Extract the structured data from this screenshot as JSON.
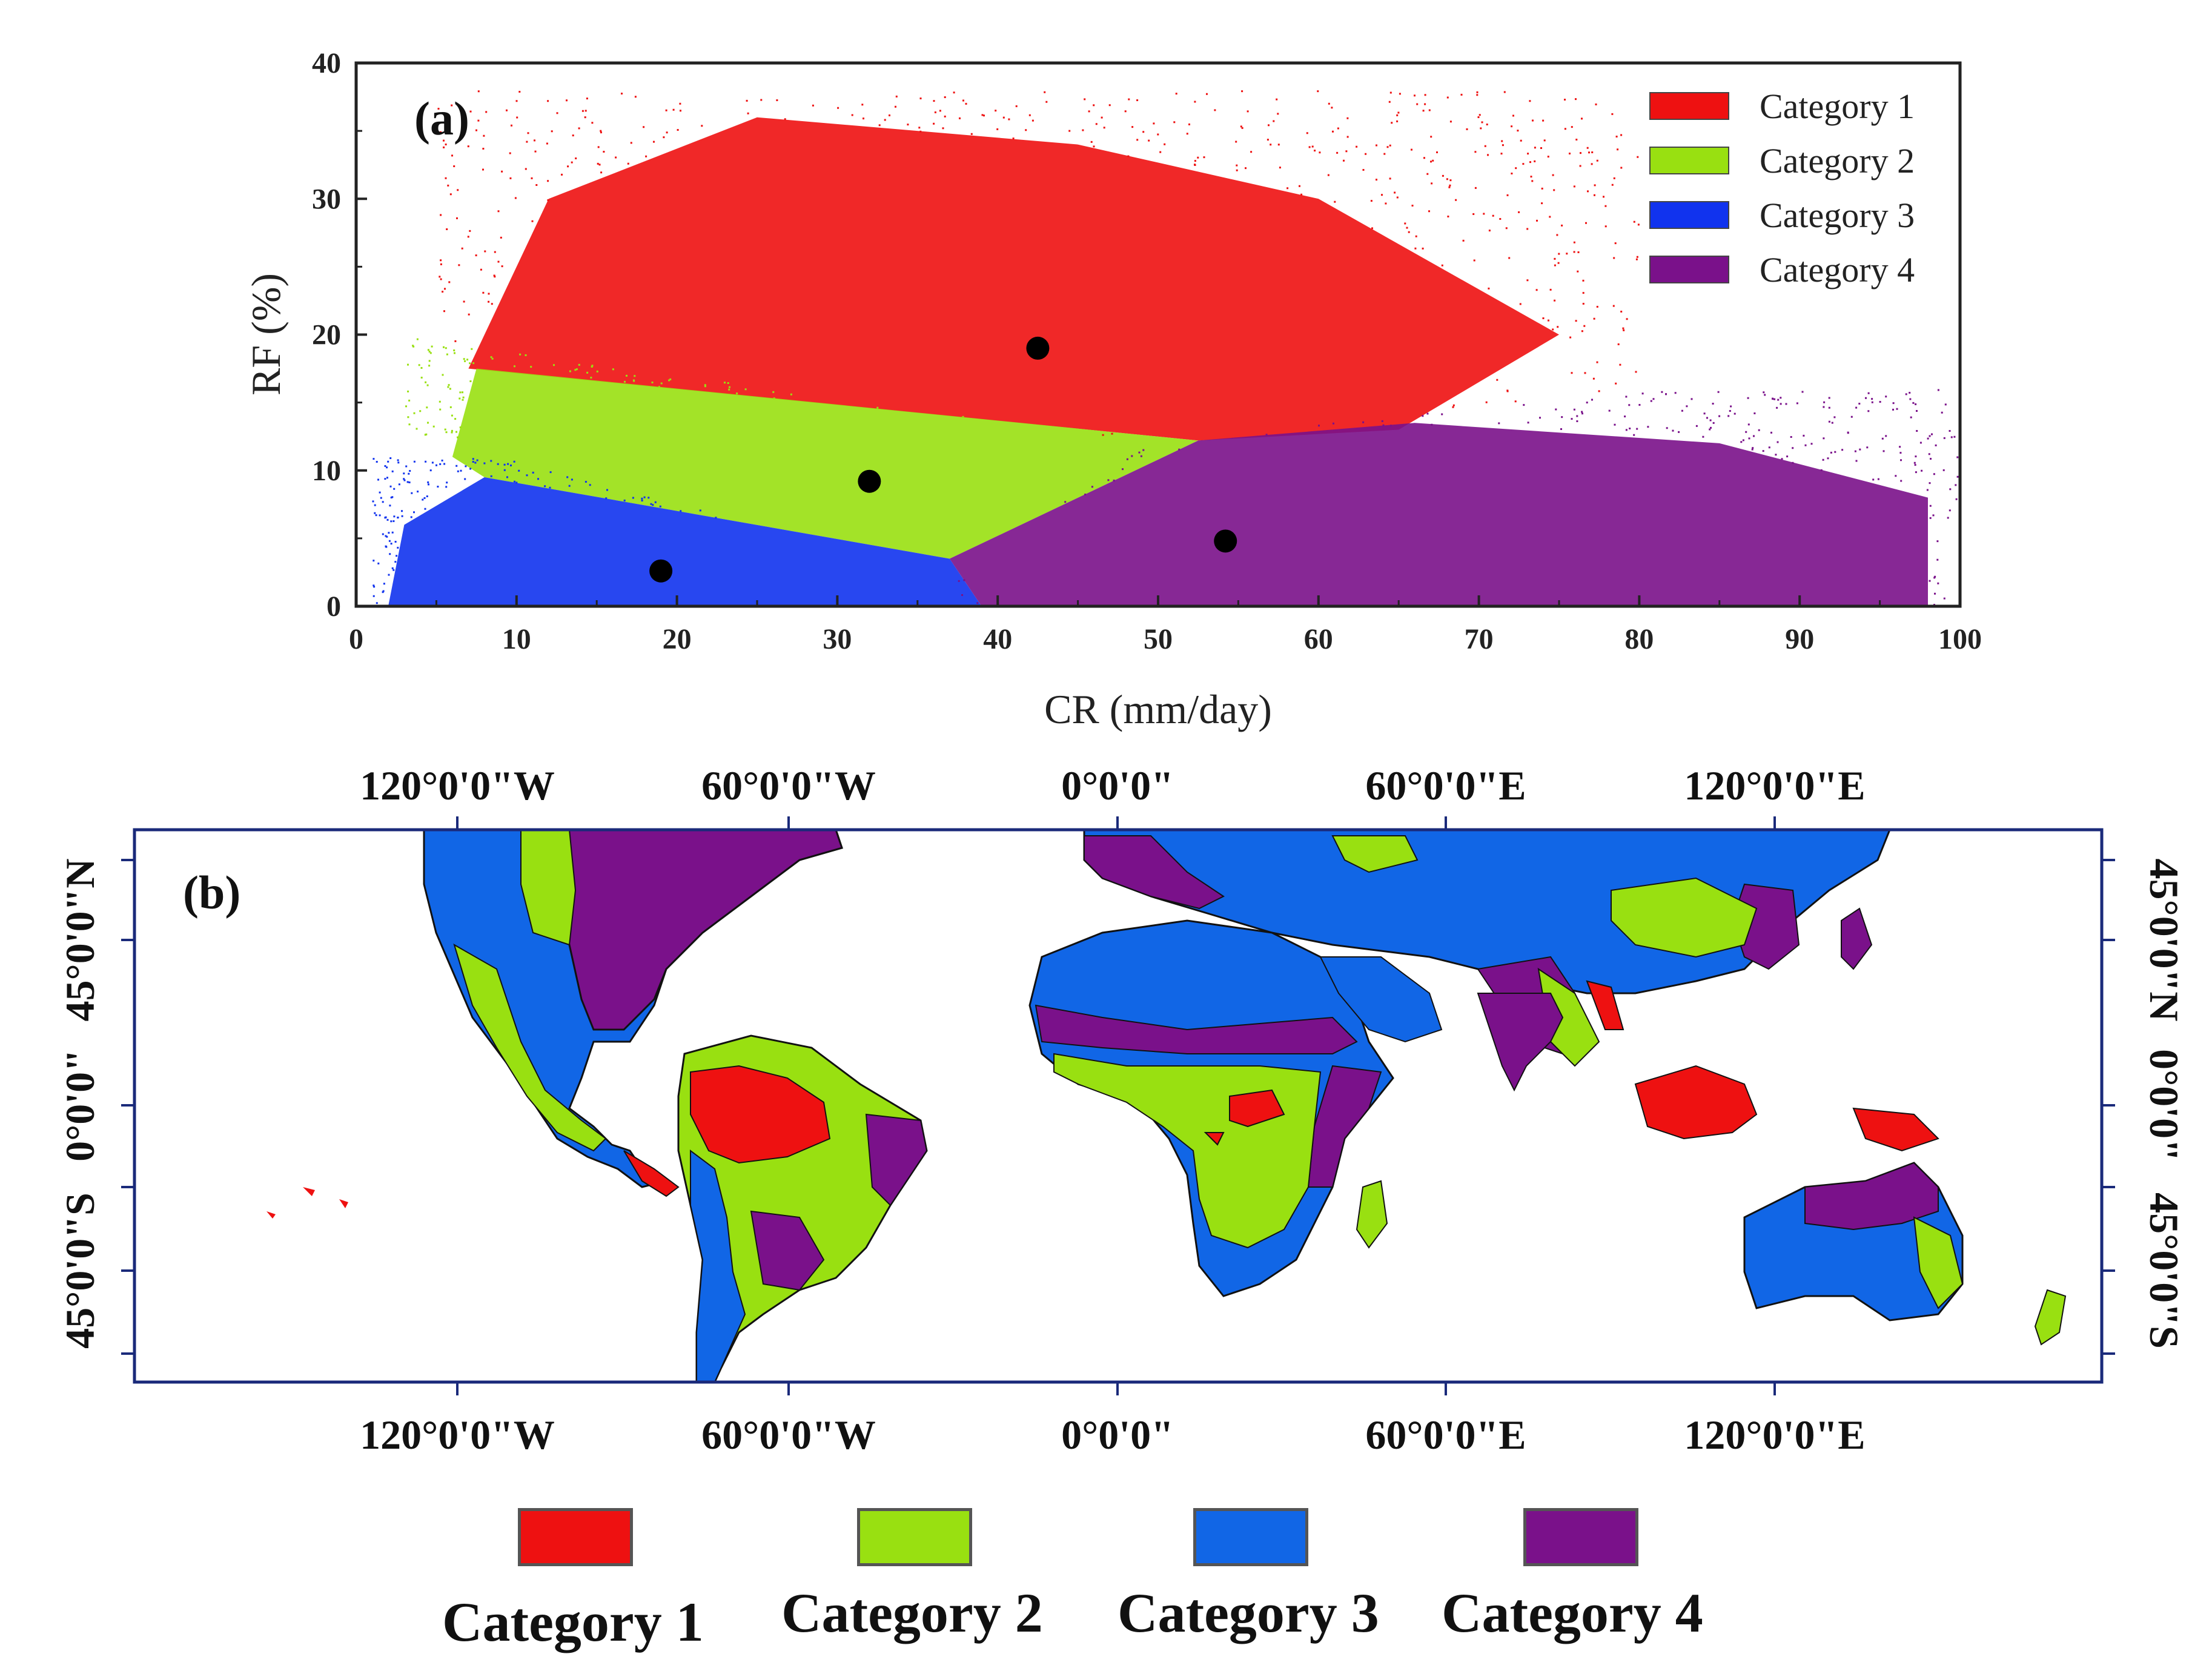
{
  "chart_data": [
    {
      "type": "scatter",
      "panel_label": "(a)",
      "xlabel": "CR (mm/day)",
      "ylabel": "RF (%)",
      "xlim": [
        0,
        100
      ],
      "ylim": [
        0,
        40
      ],
      "x_ticks": [
        "0",
        "10",
        "20",
        "30",
        "40",
        "50",
        "60",
        "70",
        "80",
        "90",
        "100"
      ],
      "y_ticks": [
        "0",
        "10",
        "20",
        "30",
        "40"
      ],
      "legend": [
        {
          "name": "Category 1",
          "color": "#ee1111"
        },
        {
          "name": "Category 2",
          "color": "#99e011"
        },
        {
          "name": "Category 3",
          "color": "#1133ee"
        },
        {
          "name": "Category 4",
          "color": "#7a118a"
        }
      ],
      "regions": [
        {
          "name": "Category 1",
          "polygon": [
            [
              7,
              17.5
            ],
            [
              52.5,
              12.2
            ],
            [
              65,
              13
            ],
            [
              75,
              20
            ],
            [
              60,
              30
            ],
            [
              45,
              34
            ],
            [
              25,
              36
            ],
            [
              12,
              30
            ]
          ]
        },
        {
          "name": "Category 2",
          "polygon": [
            [
              6,
              11
            ],
            [
              7.5,
              17.5
            ],
            [
              52.5,
              12.2
            ],
            [
              37,
              3.5
            ],
            [
              8,
              9.5
            ]
          ]
        },
        {
          "name": "Category 3",
          "polygon": [
            [
              2,
              0
            ],
            [
              39,
              0
            ],
            [
              37,
              3.5
            ],
            [
              8,
              9.5
            ],
            [
              3,
              6
            ]
          ]
        },
        {
          "name": "Category 4",
          "polygon": [
            [
              39,
              0
            ],
            [
              98,
              0
            ],
            [
              98,
              8
            ],
            [
              85,
              12
            ],
            [
              66,
              13.5
            ],
            [
              52.5,
              12.2
            ],
            [
              37,
              3.5
            ]
          ]
        }
      ],
      "centroids": [
        {
          "name": "Category 1",
          "x": 42.5,
          "y": 19
        },
        {
          "name": "Category 2",
          "x": 32,
          "y": 9.2
        },
        {
          "name": "Category 3",
          "x": 19,
          "y": 2.6
        },
        {
          "name": "Category 4",
          "x": 54.2,
          "y": 4.8
        }
      ]
    },
    {
      "type": "map",
      "panel_label": "(b)",
      "top_lon_labels": [
        "120°0'0\"W",
        "60°0'0\"W",
        "0°0'0\"",
        "60°0'0\"E",
        "120°0'0\"E"
      ],
      "bottom_lon_labels": [
        "120°0'0\"W",
        "60°0'0\"W",
        "0°0'0\"",
        "60°0'0\"E",
        "120°0'0\"E"
      ],
      "left_lat_labels": [
        "45°0'0\"N",
        "0°0'0\"",
        "45°0'0\"S"
      ],
      "right_lat_labels": [
        "45°0'0\"N",
        "0°0'0\"",
        "45°0'0\"S"
      ]
    }
  ],
  "legend_bottom": [
    {
      "label": "Category 1",
      "color": "#ee1111"
    },
    {
      "label": "Category 2",
      "color": "#99e011"
    },
    {
      "label": "Category 3",
      "color": "#1166e6"
    },
    {
      "label": "Category 4",
      "color": "#7a118a"
    }
  ]
}
